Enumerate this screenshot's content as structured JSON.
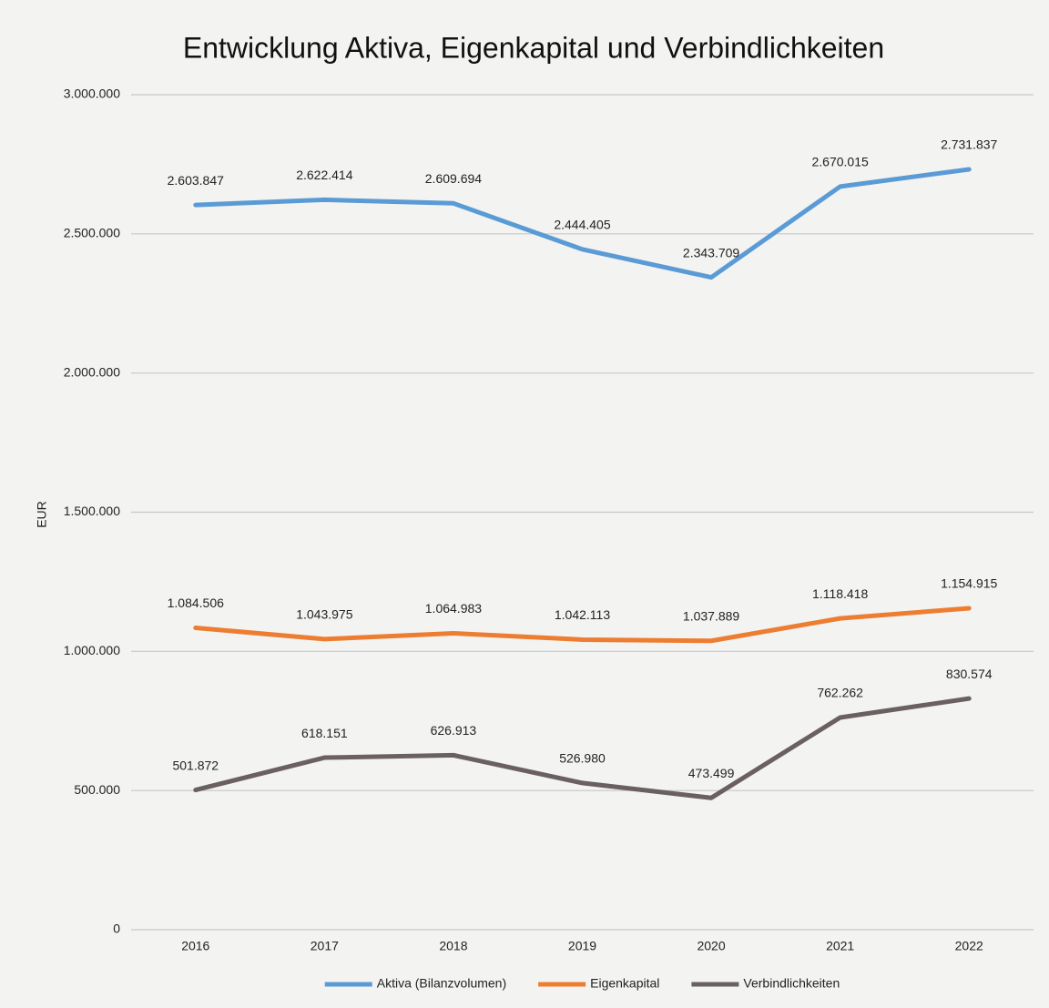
{
  "chart_data": {
    "type": "line",
    "title": "Entwicklung Aktiva, Eigenkapital und Verbindlichkeiten",
    "y_label": "EUR",
    "categories": [
      "2016",
      "2017",
      "2018",
      "2019",
      "2020",
      "2021",
      "2022"
    ],
    "series": [
      {
        "name": "Aktiva (Bilanzvolumen)",
        "color": "#5b9bd5",
        "values": [
          2603847,
          2622414,
          2609694,
          2444405,
          2343709,
          2670015,
          2731837
        ],
        "value_labels": [
          "2.603.847",
          "2.622.414",
          "2.609.694",
          "2.444.405",
          "2.343.709",
          "2.670.015",
          "2.731.837"
        ]
      },
      {
        "name": "Eigenkapital",
        "color": "#ed7d31",
        "values": [
          1084506,
          1043975,
          1064983,
          1042113,
          1037889,
          1118418,
          1154915
        ],
        "value_labels": [
          "1.084.506",
          "1.043.975",
          "1.064.983",
          "1.042.113",
          "1.037.889",
          "1.118.418",
          "1.154.915"
        ]
      },
      {
        "name": "Verbindlichkeiten",
        "color": "#6a5f63",
        "values": [
          501872,
          618151,
          626913,
          526980,
          473499,
          762262,
          830574
        ],
        "value_labels": [
          "501.872",
          "618.151",
          "626.913",
          "526.980",
          "473.499",
          "762.262",
          "830.574"
        ]
      }
    ],
    "ylim": [
      0,
      3000000
    ],
    "yticks": [
      0,
      {
        "value": 500000,
        "label": "500.000"
      },
      {
        "value": 1000000,
        "label": "1.000.000"
      },
      {
        "value": 1500000,
        "label": "1.500.000"
      },
      {
        "value": 2000000,
        "label": "2.000.000"
      },
      {
        "value": 2500000,
        "label": "2.500.000"
      },
      {
        "value": 3000000,
        "label": "3.000.000"
      }
    ],
    "grid": true,
    "legend": "bottom"
  }
}
